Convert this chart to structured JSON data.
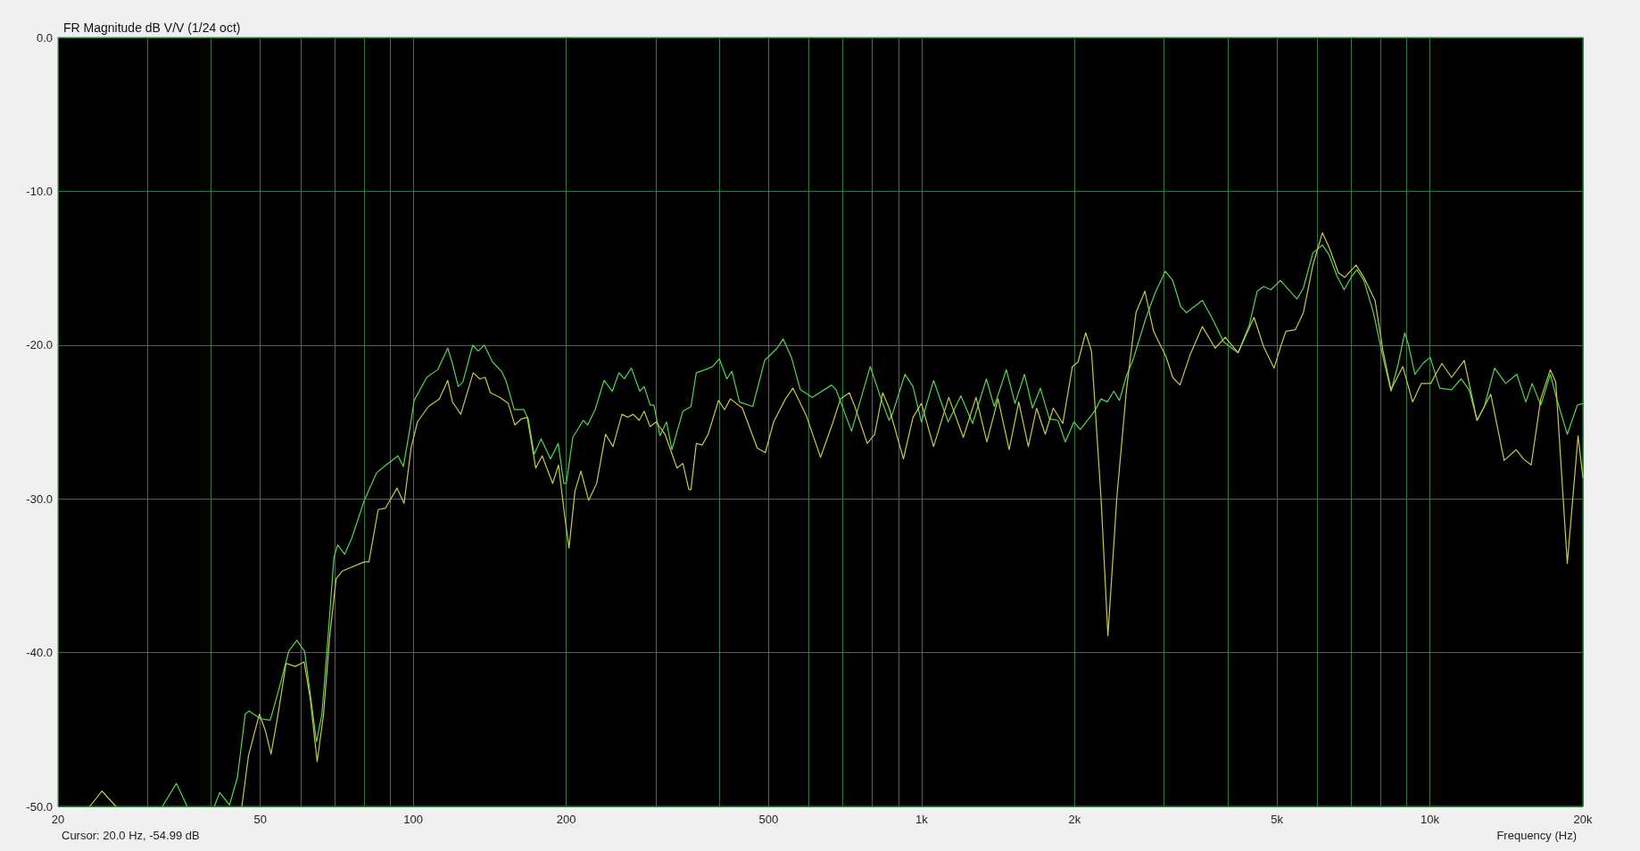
{
  "chart_data": {
    "type": "line",
    "title": "FR Magnitude dB V/V (1/24 oct)",
    "xlabel": "Frequency (Hz)",
    "annotations": [
      "Cursor: 20.0 Hz, -54.99 dB"
    ],
    "log": "x",
    "grid": true,
    "marker": "none",
    "line_style": "solid",
    "xlim": [
      20,
      20000
    ],
    "ylim": [
      -50,
      0
    ],
    "xticks": [
      20,
      {
        "value": 30,
        "label": null
      },
      {
        "value": 40,
        "label": null
      },
      50,
      {
        "value": 60,
        "label": null
      },
      {
        "value": 70,
        "label": null
      },
      {
        "value": 80,
        "label": null
      },
      {
        "value": 90,
        "label": null
      },
      100,
      200,
      {
        "value": 300,
        "label": null
      },
      {
        "value": 400,
        "label": null
      },
      500,
      {
        "value": 600,
        "label": null
      },
      {
        "value": 700,
        "label": null
      },
      {
        "value": 800,
        "label": null
      },
      {
        "value": 900,
        "label": null
      },
      {
        "value": 1000,
        "label": "1k"
      },
      {
        "value": 2000,
        "label": "2k"
      },
      {
        "value": 3000,
        "label": null
      },
      {
        "value": 4000,
        "label": null
      },
      {
        "value": 5000,
        "label": "5k"
      },
      {
        "value": 6000,
        "label": null
      },
      {
        "value": 7000,
        "label": null
      },
      {
        "value": 8000,
        "label": null
      },
      {
        "value": 9000,
        "label": null
      },
      {
        "value": 10000,
        "label": "10k"
      },
      {
        "value": 20000,
        "label": "20k"
      }
    ],
    "yticks": [
      {
        "value": -50,
        "label": "-50.0"
      },
      {
        "value": -40,
        "label": "-40.0"
      },
      {
        "value": -30,
        "label": "-30.0"
      },
      {
        "value": -20,
        "label": "-20.0"
      },
      {
        "value": -10,
        "label": "-10.0"
      },
      {
        "value": 0,
        "label": "0.0"
      }
    ],
    "series": [
      {
        "color": "#52d652",
        "x": [
          32.1,
          34.2,
          35.9,
          38,
          40.6,
          41.6,
          43.5,
          45.1,
          46.7,
          47.5,
          50.1,
          52.3,
          54.6,
          56.9,
          59.0,
          61.1,
          62.9,
          64.5,
          66.1,
          68.0,
          69.8,
          71.0,
          73.3,
          75.6,
          80.1,
          84.7,
          88.4,
          93.3,
          95.6,
          98.3,
          100.4,
          106.3,
          111.7,
          116.9,
          119.4,
          122.6,
          125.2,
          130.9,
          134.2,
          137.9,
          143.2,
          149.1,
          152.1,
          158.0,
          165.0,
          168.3,
          172.9,
          178.4,
          186.2,
          192.8,
          197.8,
          200,
          206,
          216,
          220.3,
          227.9,
          237.3,
          246.4,
          253.8,
          260.1,
          268.6,
          278.9,
          284.6,
          292.4,
          297.5,
          305.7,
          315,
          322.7,
          339.2,
          351.8,
          360.4,
          375.3,
          388.1,
          400,
          414,
          423.6,
          438.1,
          465.5,
          491.3,
          519.9,
          534.1,
          554.6,
          577.4,
          609.4,
          665.1,
          678.7,
          728,
          792.6,
          832.4,
          863.3,
          875.9,
          927.7,
          961.8,
          999.3,
          1056,
          1128,
          1195,
          1260,
          1341,
          1390,
          1468,
          1527,
          1594,
          1653,
          1713,
          1784,
          1855,
          1917,
          1994,
          2052,
          2190,
          2254,
          2320,
          2388,
          2451,
          2530,
          2604,
          2759,
          2881,
          3017,
          3119,
          3234,
          3319,
          3568,
          3736,
          3929,
          4194,
          4413,
          4574,
          4708,
          4867,
          5082,
          5477,
          5638,
          5887,
          6146,
          6327,
          6561,
          6782,
          7000,
          7184,
          7416,
          7745,
          8088,
          8386,
          8667,
          8923,
          9079,
          9344,
          9687,
          10014,
          10457,
          11030,
          11519,
          11943,
          12383,
          12800,
          13405,
          14099,
          14829,
          15442,
          15893,
          16527,
          17258,
          17763,
          18636,
          19510,
          20000
        ],
        "values": [
          -50,
          -48.5,
          -50,
          null,
          -50,
          -49.1,
          -49.9,
          -48.1,
          -44.0,
          -43.8,
          -44.3,
          -44.4,
          -42.2,
          -39.9,
          -39.2,
          -39.9,
          -43.0,
          -45.8,
          -44.0,
          -38.9,
          -33.8,
          -33.0,
          -33.6,
          -32.6,
          -30.1,
          -28.3,
          -27.8,
          -27.2,
          -27.9,
          -25.6,
          -23.6,
          -22.1,
          -21.6,
          -20.2,
          -21.2,
          -22.7,
          -22.4,
          -20.0,
          -20.4,
          -20.0,
          -21.1,
          -21.7,
          -22.3,
          -24.2,
          -24.2,
          -24.8,
          -27.1,
          -26.1,
          -27.4,
          -26.4,
          -29.0,
          -29.0,
          -26.0,
          -24.9,
          -25.2,
          -24.2,
          -22.3,
          -23.0,
          -21.8,
          -22.2,
          -21.5,
          -23.0,
          -22.7,
          -23.9,
          -23.9,
          -25.9,
          -25.0,
          -26.8,
          -24.3,
          -24.0,
          -21.8,
          -21.6,
          -21.4,
          -20.9,
          -22.2,
          -21.7,
          -23.7,
          -24.0,
          -21.0,
          -20.2,
          -19.6,
          -20.8,
          -22.9,
          -23.4,
          -22.6,
          -22.9,
          -25.6,
          -21.4,
          -23.5,
          -24.9,
          -24.5,
          -21.9,
          -22.7,
          -25.0,
          -22.3,
          -25.0,
          -23.3,
          -25.1,
          -22.2,
          -24.0,
          -21.6,
          -23.8,
          -21.9,
          -24.1,
          -22.8,
          -24.8,
          -24.9,
          -26.3,
          -25.0,
          -25.5,
          -24.3,
          -23.5,
          -23.7,
          -23.0,
          -23.6,
          -22.0,
          -21.0,
          -18.3,
          -16.6,
          -15.2,
          -15.8,
          -17.5,
          -17.9,
          -17.1,
          -18.3,
          -19.8,
          -20.5,
          -18.7,
          -16.5,
          -16.2,
          -16.4,
          -15.8,
          -17.0,
          -16.3,
          -14.0,
          -13.5,
          -14.1,
          -15.5,
          -16.4,
          -15.6,
          -15.1,
          -15.8,
          -17.9,
          -20.8,
          -23.0,
          -21.2,
          -19.2,
          -20.0,
          -21.9,
          -21.2,
          -20.8,
          -22.8,
          -22.9,
          -22.2,
          -22.9,
          -24.9,
          -24.0,
          -21.5,
          -22.5,
          -21.9,
          -23.7,
          -22.5,
          -23.9,
          -21.9,
          -23.5,
          -25.8,
          -23.9,
          -23.8
        ]
      },
      {
        "color": "#c8c84a",
        "x": [
          23.1,
          24.4,
          26.0,
          35,
          46.0,
          47.4,
          49.8,
          51.2,
          52.5,
          54.2,
          56.2,
          58.6,
          61.0,
          62.7,
          64.7,
          66.6,
          68.5,
          70.5,
          72.5,
          80.1,
          81.8,
          85.3,
          88.2,
          92.9,
          95.9,
          99.0,
          101.9,
          107.1,
          112.5,
          116.9,
          119.4,
          124.0,
          131.2,
          135.1,
          138.5,
          141.8,
          148.1,
          153.8,
          158.4,
          163.2,
          167.6,
          174.1,
          179.3,
          188.0,
          193.1,
          198.7,
          202.5,
          208.0,
          213.7,
          221.3,
          229.5,
          238.9,
          247.1,
          257.3,
          264.3,
          270.8,
          278.2,
          284.6,
          292.4,
          300.4,
          312.8,
          330.2,
          339.2,
          348.4,
          351.8,
          360.4,
          370.2,
          380.3,
          398.6,
          409.6,
          420.7,
          444,
          475,
          492.7,
          511.5,
          539.8,
          558.3,
          593.3,
          632.8,
          669.7,
          692.6,
          721.1,
          741,
          781.9,
          808.6,
          838.4,
          863.3,
          921.1,
          961.8,
          999.3,
          1056,
          1131,
          1208,
          1280,
          1344,
          1414,
          1487,
          1553,
          1622,
          1684,
          1751,
          1816,
          1896,
          1980,
          2032,
          2103,
          2159,
          2254,
          2326,
          2422,
          2530,
          2641,
          2750,
          2860,
          3030,
          3119,
          3224,
          3378,
          3568,
          3780,
          3958,
          4194,
          4509,
          4708,
          4937,
          5098,
          5210,
          5438,
          5638,
          5887,
          6146,
          6327,
          6608,
          6801,
          7155,
          7416,
          7802,
          8088,
          8386,
          8845,
          9250,
          9618,
          10044,
          10264,
          10563,
          11030,
          11685,
          12383,
          13175,
          13999,
          14788,
          15265,
          15824,
          16527,
          17258,
          17686,
          18636,
          19568,
          20000
        ],
        "values": [
          -50,
          -49.0,
          -50,
          null,
          -50,
          -46.7,
          -44.0,
          -45.1,
          -46.6,
          -44.0,
          -40.7,
          -40.9,
          -40.6,
          -43.0,
          -47.1,
          -44.0,
          -38.9,
          -35.2,
          -34.7,
          -34.1,
          -34.1,
          -30.7,
          -30.6,
          -29.3,
          -30.3,
          -26.7,
          -25.0,
          -24.0,
          -23.5,
          -22.3,
          -23.7,
          -24.5,
          -21.8,
          -22.2,
          -22.1,
          -23.1,
          -23.4,
          -23.8,
          -25.2,
          -24.8,
          -24.7,
          -28.0,
          -27.2,
          -29.0,
          -27.8,
          -31.2,
          -33.2,
          -29.5,
          -28.2,
          -30.1,
          -29.0,
          -25.8,
          -26.6,
          -24.5,
          -24.7,
          -24.5,
          -24.9,
          -24.3,
          -25.3,
          -25.0,
          -25.8,
          -28.0,
          -27.7,
          -29.4,
          -29.4,
          -26.4,
          -26.5,
          -25.8,
          -23.6,
          -24.2,
          -23.5,
          -24.1,
          -26.7,
          -27.0,
          -25.0,
          -23.5,
          -22.8,
          -24.6,
          -27.3,
          -25.0,
          -23.5,
          -23.1,
          -24.1,
          -26.4,
          -25.8,
          -23.1,
          -24.1,
          -27.4,
          -24.7,
          -23.8,
          -26.6,
          -23.4,
          -26.0,
          -23.4,
          -26.3,
          -23.5,
          -26.8,
          -23.7,
          -26.6,
          -24.1,
          -25.8,
          -24.1,
          -25.1,
          -21.4,
          -21.1,
          -19.2,
          -20.4,
          -29.9,
          -38.9,
          -29.9,
          -22.9,
          -17.9,
          -16.5,
          -19.1,
          -20.8,
          -22.1,
          -22.6,
          -20.6,
          -18.8,
          -20.2,
          -19.5,
          -20.5,
          -18.2,
          -20.1,
          -21.5,
          -20.0,
          -19.1,
          -19.0,
          -17.9,
          -14.8,
          -12.7,
          -13.6,
          -15.3,
          -15.6,
          -14.8,
          -15.6,
          -17.1,
          -20.4,
          -22.9,
          -21.4,
          -23.7,
          -22.5,
          -22.5,
          -21.9,
          -21.2,
          -22.1,
          -21.0,
          -24.9,
          -23.2,
          -27.5,
          -26.8,
          -27.4,
          -27.8,
          -23.5,
          -21.6,
          -22.4,
          -34.2,
          -25.9,
          -28.6
        ]
      }
    ]
  }
}
